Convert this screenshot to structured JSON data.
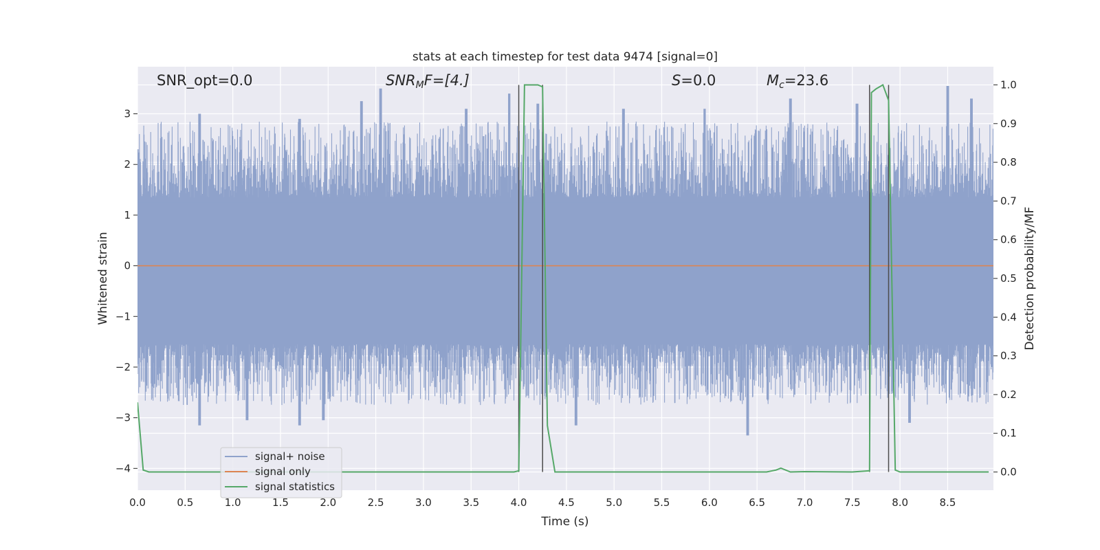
{
  "chart_data": {
    "type": "line",
    "title": "stats at each timestep for test data 9474 [signal=0]",
    "xlabel": "Time (s)",
    "ylabel": "Whitened strain",
    "y2label": "Detection probability/MF",
    "xlim": [
      0.0,
      8.98
    ],
    "ylim": [
      -4.43,
      3.93
    ],
    "y2lim": [
      -0.047,
      1.047
    ],
    "x_ticks": [
      "0.0",
      "0.5",
      "1.0",
      "1.5",
      "2.0",
      "2.5",
      "3.0",
      "3.5",
      "4.0",
      "4.5",
      "5.0",
      "5.5",
      "6.0",
      "6.5",
      "7.0",
      "7.5",
      "8.0",
      "8.5"
    ],
    "y_ticks": [
      "−4",
      "−3",
      "−2",
      "−1",
      "0",
      "1",
      "2",
      "3"
    ],
    "y2_ticks": [
      "0.0",
      "0.1",
      "0.2",
      "0.3",
      "0.4",
      "0.5",
      "0.6",
      "0.7",
      "0.8",
      "0.9",
      "1.0"
    ],
    "grid": true,
    "legend_position": "lower-left",
    "annotations": {
      "snr_opt": "SNR_opt=0.0",
      "snr_mf_main": "SNR",
      "snr_mf_sub": "M",
      "snr_mf_rest": "F=[4.]",
      "s_main": "S",
      "s_rest": "=0.0",
      "mc_main": "M",
      "mc_sub": "c",
      "mc_rest": "=23.6"
    },
    "series": [
      {
        "name": "signal+ noise",
        "color": "#8fa2cb",
        "description_kind": "noise",
        "envelope_upper_mean": 1.6,
        "envelope_upper_peaks": [
          [
            0.0,
            2.3
          ],
          [
            0.65,
            3.0
          ],
          [
            1.7,
            2.9
          ],
          [
            2.35,
            3.25
          ],
          [
            2.55,
            3.5
          ],
          [
            3.45,
            3.1
          ],
          [
            3.9,
            3.4
          ],
          [
            4.2,
            3.2
          ],
          [
            5.1,
            3.1
          ],
          [
            5.95,
            3.1
          ],
          [
            6.85,
            3.3
          ],
          [
            7.55,
            3.2
          ],
          [
            8.5,
            3.55
          ],
          [
            8.75,
            3.3
          ]
        ],
        "envelope_lower_mean": -1.8,
        "envelope_lower_troughs": [
          [
            0.65,
            -3.15
          ],
          [
            1.15,
            -3.05
          ],
          [
            1.7,
            -3.15
          ],
          [
            1.95,
            -3.05
          ],
          [
            4.6,
            -3.15
          ],
          [
            6.4,
            -3.35
          ],
          [
            8.1,
            -3.1
          ]
        ]
      },
      {
        "name": "signal only",
        "color": "#dd8452",
        "x": [
          0.0,
          8.98
        ],
        "y": [
          0.0,
          0.0
        ]
      },
      {
        "name": "signal statistics",
        "color": "#55a868",
        "axis": "right",
        "x": [
          0.0,
          0.06,
          0.12,
          0.5,
          1.0,
          2.0,
          3.0,
          3.95,
          4.0,
          4.02,
          4.06,
          4.2,
          4.25,
          4.3,
          4.38,
          4.45,
          5.0,
          6.0,
          6.6,
          6.7,
          6.75,
          6.85,
          7.0,
          7.5,
          7.68,
          7.7,
          7.75,
          7.82,
          7.88,
          7.95,
          8.0,
          8.5,
          8.93
        ],
        "y": [
          0.18,
          0.005,
          0.0,
          0.0,
          0.0,
          0.0,
          0.0,
          0.0,
          0.003,
          0.32,
          1.0,
          1.0,
          0.995,
          0.12,
          0.0,
          0.0,
          0.0,
          0.0,
          0.0,
          0.005,
          0.01,
          0.0,
          0.001,
          0.0,
          0.003,
          0.98,
          0.99,
          1.0,
          0.96,
          0.005,
          0.0,
          0.0,
          0.0
        ]
      }
    ],
    "vertical_lines": [
      4.0,
      4.25,
      7.68,
      7.88
    ],
    "vertical_line_y2_top": 1.0,
    "colors": {
      "plot_background": "#eaeaf2",
      "grid": "#ffffff",
      "vline": "#4c4c4c"
    }
  }
}
